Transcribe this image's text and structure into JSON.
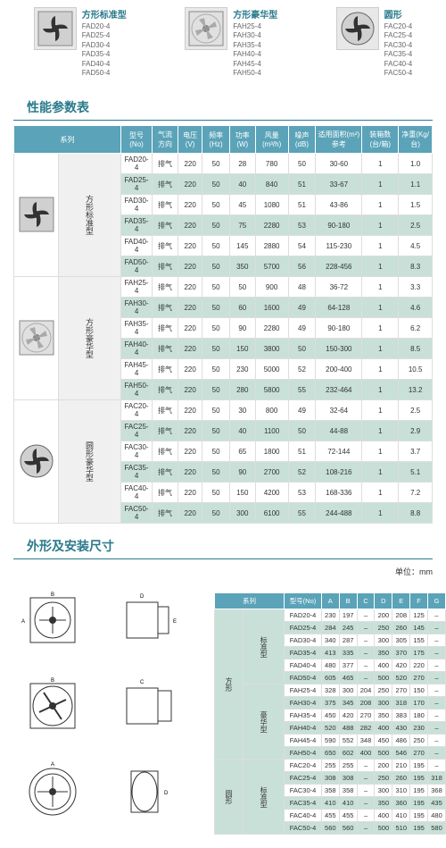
{
  "products": [
    {
      "title": "方形标准型",
      "models": [
        "FAD20-4",
        "FAD25-4",
        "FAD30-4",
        "FAD35-4",
        "FAD40-4",
        "FAD50-4"
      ]
    },
    {
      "title": "方形豪华型",
      "models": [
        "FAH25-4",
        "FAH30-4",
        "FAH35-4",
        "FAH40-4",
        "FAH45-4",
        "FAH50-4"
      ]
    },
    {
      "title": "圆形",
      "models": [
        "FAC20-4",
        "FAC25-4",
        "FAC30-4",
        "FAC35-4",
        "FAC40-4",
        "FAC50-4"
      ]
    }
  ],
  "perfTitle": "性能参数表",
  "perfHeaders": [
    "系列",
    "型号(No)",
    "气流方向",
    "电压(V)",
    "频率(Hz)",
    "功率(W)",
    "风量(m³/h)",
    "噪声(dB)",
    "适用面积(m²)参考",
    "装箱数(台/箱)",
    "净重(Kg/台)"
  ],
  "perfGroups": [
    {
      "cat": "方形标准型",
      "rows": [
        [
          "FAD20-4",
          "排气",
          "220",
          "50",
          "28",
          "780",
          "50",
          "30-60",
          "1",
          "1.0"
        ],
        [
          "FAD25-4",
          "排气",
          "220",
          "50",
          "40",
          "840",
          "51",
          "33-67",
          "1",
          "1.1"
        ],
        [
          "FAD30-4",
          "排气",
          "220",
          "50",
          "45",
          "1080",
          "51",
          "43-86",
          "1",
          "1.5"
        ],
        [
          "FAD35-4",
          "排气",
          "220",
          "50",
          "75",
          "2280",
          "53",
          "90-180",
          "1",
          "2.5"
        ],
        [
          "FAD40-4",
          "排气",
          "220",
          "50",
          "145",
          "2880",
          "54",
          "115-230",
          "1",
          "4.5"
        ],
        [
          "FAD50-4",
          "排气",
          "220",
          "50",
          "350",
          "5700",
          "56",
          "228-456",
          "1",
          "8.3"
        ]
      ]
    },
    {
      "cat": "方形豪华型",
      "rows": [
        [
          "FAH25-4",
          "排气",
          "220",
          "50",
          "50",
          "900",
          "48",
          "36-72",
          "1",
          "3.3"
        ],
        [
          "FAH30-4",
          "排气",
          "220",
          "50",
          "60",
          "1600",
          "49",
          "64-128",
          "1",
          "4.6"
        ],
        [
          "FAH35-4",
          "排气",
          "220",
          "50",
          "90",
          "2280",
          "49",
          "90-180",
          "1",
          "6.2"
        ],
        [
          "FAH40-4",
          "排气",
          "220",
          "50",
          "150",
          "3800",
          "50",
          "150-300",
          "1",
          "8.5"
        ],
        [
          "FAH45-4",
          "排气",
          "220",
          "50",
          "230",
          "5000",
          "52",
          "200-400",
          "1",
          "10.5"
        ],
        [
          "FAH50-4",
          "排气",
          "220",
          "50",
          "280",
          "5800",
          "55",
          "232-464",
          "1",
          "13.2"
        ]
      ]
    },
    {
      "cat": "圆形豪华型",
      "rows": [
        [
          "FAC20-4",
          "排气",
          "220",
          "50",
          "30",
          "800",
          "49",
          "32-64",
          "1",
          "2.5"
        ],
        [
          "FAC25-4",
          "排气",
          "220",
          "50",
          "40",
          "1100",
          "50",
          "44-88",
          "1",
          "2.9"
        ],
        [
          "FAC30-4",
          "排气",
          "220",
          "50",
          "65",
          "1800",
          "51",
          "72-144",
          "1",
          "3.7"
        ],
        [
          "FAC35-4",
          "排气",
          "220",
          "50",
          "90",
          "2700",
          "52",
          "108-216",
          "1",
          "5.1"
        ],
        [
          "FAC40-4",
          "排气",
          "220",
          "50",
          "150",
          "4200",
          "53",
          "168-336",
          "1",
          "7.2"
        ],
        [
          "FAC50-4",
          "排气",
          "220",
          "50",
          "300",
          "6100",
          "55",
          "244-488",
          "1",
          "8.8"
        ]
      ]
    }
  ],
  "dimTitle": "外形及安装尺寸",
  "unitText": "单位：mm",
  "dimHeaders": [
    "系列",
    "型号(No)",
    "A",
    "B",
    "C",
    "D",
    "E",
    "F",
    "G"
  ],
  "dimGroups": [
    {
      "shape": "方形",
      "cat": "标准型",
      "rows": [
        [
          "FAD20-4",
          "230",
          "197",
          "–",
          "200",
          "208",
          "125",
          "–"
        ],
        [
          "FAD25-4",
          "284",
          "245",
          "–",
          "250",
          "260",
          "145",
          "–"
        ],
        [
          "FAD30-4",
          "340",
          "287",
          "–",
          "300",
          "305",
          "155",
          "–"
        ],
        [
          "FAD35-4",
          "413",
          "335",
          "–",
          "350",
          "370",
          "175",
          "–"
        ],
        [
          "FAD40-4",
          "480",
          "377",
          "–",
          "400",
          "420",
          "220",
          "–"
        ],
        [
          "FAD50-4",
          "605",
          "465",
          "–",
          "500",
          "520",
          "270",
          "–"
        ]
      ]
    },
    {
      "shape": "",
      "cat": "豪华型",
      "rows": [
        [
          "FAH25-4",
          "328",
          "300",
          "204",
          "250",
          "270",
          "150",
          "–"
        ],
        [
          "FAH30-4",
          "375",
          "345",
          "208",
          "300",
          "318",
          "170",
          "–"
        ],
        [
          "FAH35-4",
          "450",
          "420",
          "270",
          "350",
          "383",
          "180",
          "–"
        ],
        [
          "FAH40-4",
          "520",
          "488",
          "282",
          "400",
          "430",
          "230",
          "–"
        ],
        [
          "FAH45-4",
          "590",
          "552",
          "348",
          "450",
          "486",
          "250",
          "–"
        ],
        [
          "FAH50-4",
          "650",
          "602",
          "400",
          "500",
          "546",
          "270",
          "–"
        ]
      ]
    },
    {
      "shape": "圆形",
      "cat": "标准型",
      "rows": [
        [
          "FAC20-4",
          "255",
          "255",
          "–",
          "200",
          "210",
          "195",
          "–"
        ],
        [
          "FAC25-4",
          "308",
          "308",
          "–",
          "250",
          "260",
          "195",
          "318"
        ],
        [
          "FAC30-4",
          "358",
          "358",
          "–",
          "300",
          "310",
          "195",
          "368"
        ],
        [
          "FAC35-4",
          "410",
          "410",
          "–",
          "350",
          "360",
          "195",
          "435"
        ],
        [
          "FAC40-4",
          "455",
          "455",
          "–",
          "400",
          "410",
          "195",
          "480"
        ],
        [
          "FAC50-4",
          "560",
          "560",
          "–",
          "500",
          "510",
          "195",
          "580"
        ]
      ]
    }
  ]
}
